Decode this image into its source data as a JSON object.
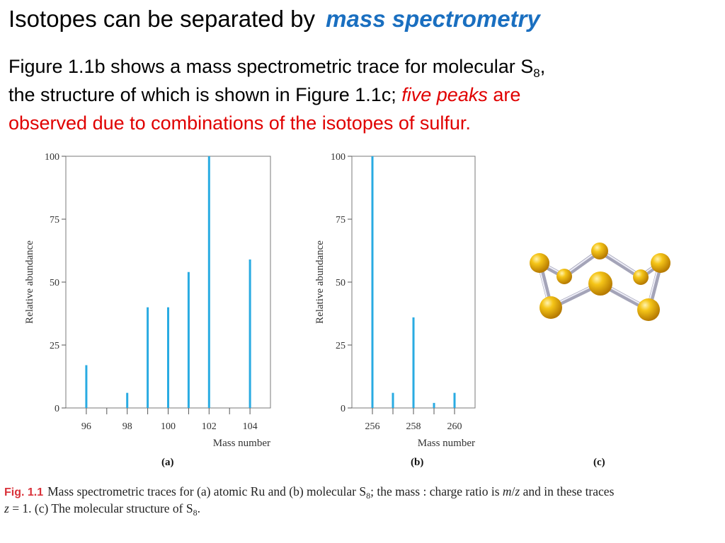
{
  "slide": {
    "title_plain": "Isotopes can be separated by",
    "title_highlight": "mass spectrometry",
    "body": {
      "line1_pre": "Figure 1.1b shows a mass spectrometric trace for molecular S",
      "line1_sub": "8",
      "line1_post": ",",
      "line2_pre": "the structure of which is shown in Figure 1.1c; ",
      "line2_italic": "five peaks",
      "line2_post": " are",
      "line3": "observed due to combinations of the isotopes of sulfur."
    }
  },
  "panels": {
    "a": "(a)",
    "b": "(b)",
    "c": "(c)"
  },
  "caption": {
    "fig_label": "Fig. 1.1",
    "text_1": "Mass spectrometric traces for (a) atomic Ru and (b) molecular S",
    "sub_1": "8",
    "text_2": "; the mass : charge ratio is ",
    "italic_m": "m",
    "slash": "/",
    "italic_z": "z",
    "text_3": " and in these traces",
    "italic_z2": "z",
    "text_4": " = 1. (c) The molecular structure of S",
    "sub_2": "8",
    "text_5": "."
  },
  "colors": {
    "accent": "#1a6fc0",
    "emphasis": "#e00000",
    "bar": "#29abe2",
    "caption_label": "#d9323a"
  },
  "molecule": {
    "icon": "s8-crown-molecule-icon"
  },
  "chart_data": [
    {
      "type": "bar",
      "panel": "(a)",
      "xlabel": "Mass number",
      "ylabel": "Relative abundance",
      "xlim": [
        95,
        105
      ],
      "ylim": [
        0,
        100
      ],
      "xticks": [
        96,
        97,
        98,
        99,
        100,
        101,
        102,
        103,
        104
      ],
      "xtick_labels": [
        "96",
        "98",
        "100",
        "102",
        "104"
      ],
      "xtick_label_values": [
        96,
        98,
        100,
        102,
        104
      ],
      "yticks": [
        0,
        25,
        50,
        75,
        100
      ],
      "ytick_labels": [
        "0",
        "25",
        "50",
        "75",
        "100"
      ],
      "x": [
        96,
        98,
        99,
        100,
        101,
        102,
        104
      ],
      "values": [
        17,
        6,
        40,
        40,
        54,
        100,
        59
      ],
      "grid": false
    },
    {
      "type": "bar",
      "panel": "(b)",
      "xlabel": "Mass number",
      "ylabel": "Relative abundance",
      "xlim": [
        255,
        261
      ],
      "ylim": [
        0,
        100
      ],
      "xticks": [
        256,
        257,
        258,
        259,
        260
      ],
      "xtick_labels": [
        "256",
        "258",
        "260"
      ],
      "xtick_label_values": [
        256,
        258,
        260
      ],
      "yticks": [
        0,
        25,
        50,
        75,
        100
      ],
      "ytick_labels": [
        "0",
        "25",
        "50",
        "75",
        "100"
      ],
      "x": [
        256,
        257,
        258,
        259,
        260
      ],
      "values": [
        100,
        6,
        36,
        2,
        6
      ],
      "grid": false
    }
  ]
}
